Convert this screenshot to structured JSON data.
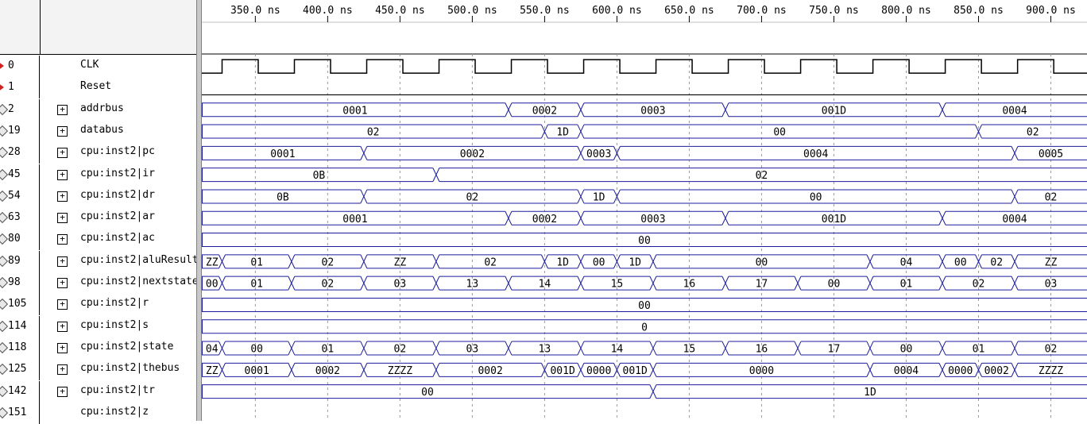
{
  "time_axis": {
    "ticks": [
      "350.0 ns",
      "400.0 ns",
      "450.0 ns",
      "500.0 ns",
      "550.0 ns",
      "600.0 ns",
      "650.0 ns",
      "700.0 ns",
      "750.0 ns",
      "800.0 ns",
      "850.0 ns",
      "900.0 ns"
    ],
    "tick_values_ns": [
      350,
      400,
      450,
      500,
      550,
      600,
      650,
      700,
      750,
      800,
      850,
      900
    ],
    "view_start_ns": 313,
    "view_end_ns": 925,
    "clock_period_ns": 50,
    "clock_first_rise_ns": 327
  },
  "colors": {
    "bus": "#1c1c9c",
    "clk": "#000000",
    "grid": "#9a9a9a"
  },
  "signals": [
    {
      "id": "0",
      "name": "CLK",
      "kind": "clock",
      "pin": "input"
    },
    {
      "id": "1",
      "name": "Reset",
      "kind": "low",
      "pin": "input"
    },
    {
      "id": "2",
      "name": "addrbus",
      "kind": "bus",
      "pin": "bus",
      "expandable": true,
      "segments": [
        [
          "0001",
          313,
          525
        ],
        [
          "0002",
          525,
          575
        ],
        [
          "0003",
          575,
          675
        ],
        [
          "001D",
          675,
          825
        ],
        [
          "0004",
          825,
          925
        ]
      ]
    },
    {
      "id": "19",
      "name": "databus",
      "kind": "bus",
      "pin": "bus",
      "expandable": true,
      "segments": [
        [
          "02",
          313,
          550
        ],
        [
          "1D",
          550,
          575
        ],
        [
          "00",
          575,
          850
        ],
        [
          "02",
          850,
          925
        ]
      ]
    },
    {
      "id": "28",
      "name": "cpu:inst2|pc",
      "kind": "bus",
      "pin": "bus",
      "expandable": true,
      "segments": [
        [
          "0001",
          313,
          425
        ],
        [
          "0002",
          425,
          575
        ],
        [
          "0003",
          575,
          600
        ],
        [
          "0004",
          600,
          875
        ],
        [
          "0005",
          875,
          925
        ]
      ]
    },
    {
      "id": "45",
      "name": "cpu:inst2|ir",
      "kind": "bus",
      "pin": "bus",
      "expandable": true,
      "segments": [
        [
          "0B",
          313,
          475
        ],
        [
          "02",
          475,
          925
        ]
      ]
    },
    {
      "id": "54",
      "name": "cpu:inst2|dr",
      "kind": "bus",
      "pin": "bus",
      "expandable": true,
      "segments": [
        [
          "0B",
          313,
          425
        ],
        [
          "02",
          425,
          575
        ],
        [
          "1D",
          575,
          600
        ],
        [
          "00",
          600,
          875
        ],
        [
          "02",
          875,
          925
        ]
      ]
    },
    {
      "id": "63",
      "name": "cpu:inst2|ar",
      "kind": "bus",
      "pin": "bus",
      "expandable": true,
      "segments": [
        [
          "0001",
          313,
          525
        ],
        [
          "0002",
          525,
          575
        ],
        [
          "0003",
          575,
          675
        ],
        [
          "001D",
          675,
          825
        ],
        [
          "0004",
          825,
          925
        ]
      ]
    },
    {
      "id": "80",
      "name": "cpu:inst2|ac",
      "kind": "bus",
      "pin": "bus",
      "expandable": true,
      "segments": [
        [
          "00",
          313,
          925
        ]
      ]
    },
    {
      "id": "89",
      "name": "cpu:inst2|aluResult",
      "kind": "bus",
      "pin": "bus",
      "expandable": true,
      "segments": [
        [
          "ZZ",
          313,
          327
        ],
        [
          "01",
          327,
          375
        ],
        [
          "02",
          375,
          425
        ],
        [
          "ZZ",
          425,
          475
        ],
        [
          "02",
          475,
          550
        ],
        [
          "1D",
          550,
          575
        ],
        [
          "00",
          575,
          600
        ],
        [
          "1D",
          600,
          625
        ],
        [
          "00",
          625,
          775
        ],
        [
          "04",
          775,
          825
        ],
        [
          "00",
          825,
          850
        ],
        [
          "02",
          850,
          875
        ],
        [
          "ZZ",
          875,
          925
        ]
      ]
    },
    {
      "id": "98",
      "name": "cpu:inst2|nextstate",
      "kind": "bus",
      "pin": "bus",
      "expandable": true,
      "segments": [
        [
          "00",
          313,
          327
        ],
        [
          "01",
          327,
          375
        ],
        [
          "02",
          375,
          425
        ],
        [
          "03",
          425,
          475
        ],
        [
          "13",
          475,
          525
        ],
        [
          "14",
          525,
          575
        ],
        [
          "15",
          575,
          625
        ],
        [
          "16",
          625,
          675
        ],
        [
          "17",
          675,
          725
        ],
        [
          "00",
          725,
          775
        ],
        [
          "01",
          775,
          825
        ],
        [
          "02",
          825,
          875
        ],
        [
          "03",
          875,
          925
        ]
      ]
    },
    {
      "id": "105",
      "name": "cpu:inst2|r",
      "kind": "bus",
      "pin": "bus",
      "expandable": true,
      "segments": [
        [
          "00",
          313,
          925
        ]
      ]
    },
    {
      "id": "114",
      "name": "cpu:inst2|s",
      "kind": "bus",
      "pin": "bus",
      "expandable": true,
      "segments": [
        [
          "0",
          313,
          925
        ]
      ]
    },
    {
      "id": "118",
      "name": "cpu:inst2|state",
      "kind": "bus",
      "pin": "bus",
      "expandable": true,
      "segments": [
        [
          "04",
          313,
          327
        ],
        [
          "00",
          327,
          375
        ],
        [
          "01",
          375,
          425
        ],
        [
          "02",
          425,
          475
        ],
        [
          "03",
          475,
          525
        ],
        [
          "13",
          525,
          575
        ],
        [
          "14",
          575,
          625
        ],
        [
          "15",
          625,
          675
        ],
        [
          "16",
          675,
          725
        ],
        [
          "17",
          725,
          775
        ],
        [
          "00",
          775,
          825
        ],
        [
          "01",
          825,
          875
        ],
        [
          "02",
          875,
          925
        ]
      ]
    },
    {
      "id": "125",
      "name": "cpu:inst2|thebus",
      "kind": "bus",
      "pin": "bus",
      "expandable": true,
      "segments": [
        [
          "ZZ",
          313,
          327
        ],
        [
          "0001",
          327,
          375
        ],
        [
          "0002",
          375,
          425
        ],
        [
          "ZZZZ",
          425,
          475
        ],
        [
          "0002",
          475,
          550
        ],
        [
          "001D",
          550,
          575
        ],
        [
          "0000",
          575,
          600
        ],
        [
          "001D",
          600,
          625
        ],
        [
          "0000",
          625,
          775
        ],
        [
          "0004",
          775,
          825
        ],
        [
          "0000",
          825,
          850
        ],
        [
          "0002",
          850,
          875
        ],
        [
          "ZZZZ",
          875,
          925
        ]
      ]
    },
    {
      "id": "142",
      "name": "cpu:inst2|tr",
      "kind": "bus",
      "pin": "bus",
      "expandable": true,
      "segments": [
        [
          "00",
          313,
          625
        ],
        [
          "1D",
          625,
          925
        ]
      ]
    },
    {
      "id": "151",
      "name": "cpu:inst2|z",
      "kind": "none",
      "pin": "bus",
      "expandable": false
    }
  ]
}
